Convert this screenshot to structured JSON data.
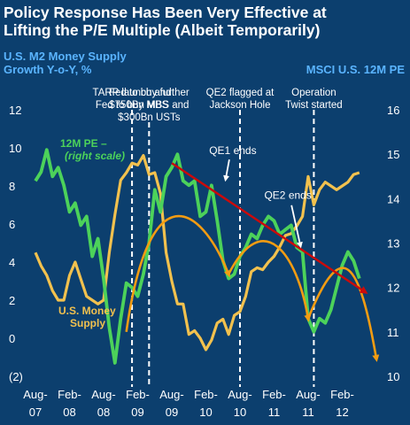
{
  "chart_data": {
    "type": "line",
    "title": [
      "Policy Response Has Been Very Effective at",
      "Lifting the P/E Multiple (Albeit Temporarily)"
    ],
    "colors": {
      "background": "#0c3f6e",
      "pe": "#4cd25a",
      "m2": "#f2c14e",
      "trend_arcs": "#f39c12",
      "trend_line": "#cc0a0a",
      "subtitle": "#5ab4ff",
      "text": "#ffffff"
    },
    "y_left": {
      "label": [
        "U.S. M2 Money Supply",
        "Growth Y-o-Y, %"
      ],
      "range": [
        -2,
        12
      ],
      "ticks": [
        "12",
        "10",
        "8",
        "6",
        "4",
        "2",
        "0",
        "(2)"
      ]
    },
    "y_right": {
      "label": "MSCI U.S. 12M PE",
      "range": [
        10,
        16
      ],
      "ticks": [
        "16",
        "15",
        "14",
        "13",
        "12",
        "11",
        "10"
      ]
    },
    "x_axis": {
      "range": [
        "2007-08",
        "2012-08"
      ],
      "ticks": [
        {
          "x": "2007-08",
          "line1": "Aug-",
          "line2": "07"
        },
        {
          "x": "2008-02",
          "line1": "Feb-",
          "line2": "08"
        },
        {
          "x": "2008-08",
          "line1": "Aug-",
          "line2": "08"
        },
        {
          "x": "2009-02",
          "line1": "Feb-",
          "line2": "09"
        },
        {
          "x": "2009-08",
          "line1": "Aug-",
          "line2": "09"
        },
        {
          "x": "2010-02",
          "line1": "Feb-",
          "line2": "10"
        },
        {
          "x": "2010-08",
          "line1": "Aug-",
          "line2": "10"
        },
        {
          "x": "2011-02",
          "line1": "Feb-",
          "line2": "11"
        },
        {
          "x": "2011-08",
          "line1": "Aug-",
          "line2": "11"
        },
        {
          "x": "2012-02",
          "line1": "Feb-",
          "line2": "12"
        }
      ]
    },
    "series": [
      {
        "name": "12M PE – (right scale)",
        "legend": [
          "12M PE –",
          "(right scale)"
        ],
        "axis": "right",
        "x": [
          "2007-08",
          "2007-09",
          "2007-10",
          "2007-11",
          "2007-12",
          "2008-01",
          "2008-02",
          "2008-03",
          "2008-04",
          "2008-05",
          "2008-06",
          "2008-07",
          "2008-08",
          "2008-09",
          "2008-10",
          "2008-11",
          "2008-12",
          "2009-01",
          "2009-02",
          "2009-03",
          "2009-04",
          "2009-05",
          "2009-06",
          "2009-07",
          "2009-08",
          "2009-09",
          "2009-10",
          "2009-11",
          "2009-12",
          "2010-01",
          "2010-02",
          "2010-03",
          "2010-04",
          "2010-05",
          "2010-06",
          "2010-07",
          "2010-08",
          "2010-09",
          "2010-10",
          "2010-11",
          "2010-12",
          "2011-01",
          "2011-02",
          "2011-03",
          "2011-04",
          "2011-05",
          "2011-06",
          "2011-07",
          "2011-08",
          "2011-09",
          "2011-10",
          "2011-11",
          "2011-12",
          "2012-01",
          "2012-02",
          "2012-03",
          "2012-04",
          "2012-05"
        ],
        "values": [
          14.4,
          14.6,
          15.1,
          14.5,
          14.7,
          14.3,
          13.7,
          13.9,
          13.4,
          13.6,
          12.7,
          13.1,
          12.2,
          11.1,
          10.3,
          11.3,
          12.1,
          12.0,
          11.8,
          12.3,
          13.0,
          14.2,
          13.7,
          14.5,
          14.7,
          15.0,
          14.4,
          14.3,
          14.4,
          13.6,
          13.7,
          14.3,
          13.5,
          12.6,
          12.2,
          12.3,
          12.7,
          12.9,
          13.2,
          13.1,
          13.4,
          13.6,
          13.5,
          13.2,
          13.3,
          13.4,
          12.9,
          12.8,
          11.3,
          11.0,
          11.3,
          11.2,
          11.5,
          12.0,
          12.5,
          12.8,
          12.6,
          12.2
        ]
      },
      {
        "name": "U.S. Money Supply",
        "legend": [
          "U.S. Money",
          "Supply"
        ],
        "axis": "left",
        "x": [
          "2007-08",
          "2007-09",
          "2007-10",
          "2007-11",
          "2007-12",
          "2008-01",
          "2008-02",
          "2008-03",
          "2008-04",
          "2008-05",
          "2008-06",
          "2008-07",
          "2008-08",
          "2008-09",
          "2008-10",
          "2008-11",
          "2008-12",
          "2009-01",
          "2009-02",
          "2009-03",
          "2009-04",
          "2009-05",
          "2009-06",
          "2009-07",
          "2009-08",
          "2009-09",
          "2009-10",
          "2009-11",
          "2009-12",
          "2010-01",
          "2010-02",
          "2010-03",
          "2010-04",
          "2010-05",
          "2010-06",
          "2010-07",
          "2010-08",
          "2010-09",
          "2010-10",
          "2010-11",
          "2010-12",
          "2011-01",
          "2011-02",
          "2011-03",
          "2011-04",
          "2011-05",
          "2011-06",
          "2011-07",
          "2011-08",
          "2011-09",
          "2011-10",
          "2011-11",
          "2011-12",
          "2012-01",
          "2012-02",
          "2012-03",
          "2012-04",
          "2012-05"
        ],
        "values": [
          4.5,
          3.8,
          3.3,
          2.5,
          2.0,
          2.0,
          3.3,
          4.0,
          3.1,
          2.2,
          2.0,
          1.8,
          2.0,
          4.5,
          6.5,
          8.3,
          8.7,
          9.2,
          9.1,
          9.6,
          8.6,
          8.7,
          7.6,
          4.5,
          3.0,
          1.8,
          1.8,
          0.2,
          0.4,
          0.0,
          -0.6,
          -0.1,
          0.8,
          1.0,
          0.2,
          1.2,
          1.4,
          2.2,
          3.5,
          3.7,
          3.6,
          4.0,
          4.3,
          4.8,
          5.4,
          5.5,
          5.9,
          6.4,
          8.5,
          7.0,
          7.8,
          8.2,
          8.0,
          7.8,
          8.0,
          8.2,
          8.6,
          8.7
        ]
      }
    ],
    "events": [
      {
        "x": "2009-01",
        "lines": [
          "TARP launch and",
          "Fed to buy MBS"
        ]
      },
      {
        "x": "2009-04",
        "lines": [
          "Fed to buy further",
          "$750Bn MBS and",
          "$300Bn USTs"
        ]
      },
      {
        "x": "2010-08",
        "lines": [
          "QE2 flagged at",
          "Jackson Hole"
        ]
      },
      {
        "x": "2011-09",
        "lines": [
          "Operation",
          "Twist started"
        ]
      }
    ],
    "annotations": [
      {
        "text": "QE1 ends",
        "x": "2010-03"
      },
      {
        "text": "QE2 ends",
        "x": "2011-06"
      }
    ]
  }
}
